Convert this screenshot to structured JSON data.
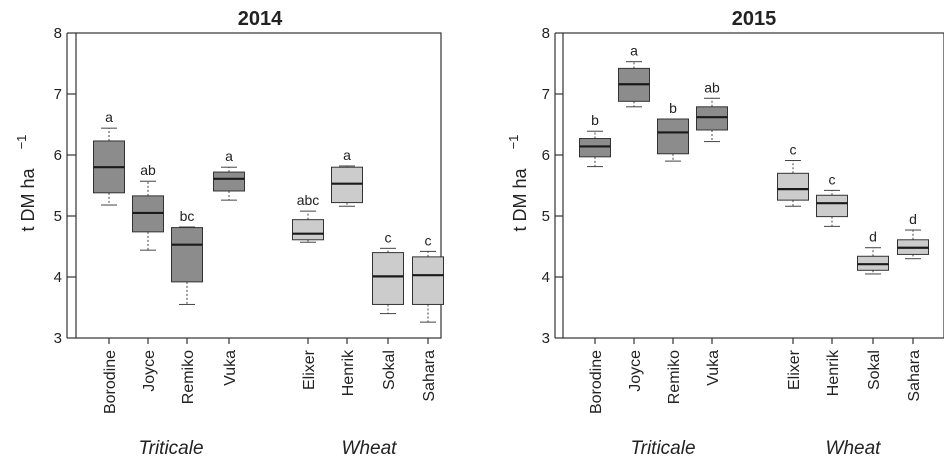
{
  "chart_data": [
    {
      "type": "box",
      "title": "2014",
      "ylabel": "t DM ha",
      "ylabel_superscript": "−1",
      "ylim": [
        3,
        8
      ],
      "yticks": [
        3,
        4,
        5,
        6,
        7,
        8
      ],
      "grid": false,
      "groups": [
        {
          "name": "Triticale",
          "color": "#8c8c8c",
          "items": [
            {
              "label": "Borodine",
              "min": 5.18,
              "q1": 5.38,
              "median": 5.8,
              "q3": 6.23,
              "max": 6.44,
              "letter": "a"
            },
            {
              "label": "Joyce",
              "min": 4.44,
              "q1": 4.74,
              "median": 5.05,
              "q3": 5.33,
              "max": 5.57,
              "letter": "ab"
            },
            {
              "label": "Remiko",
              "min": 3.55,
              "q1": 3.92,
              "median": 4.53,
              "q3": 4.81,
              "max": 4.82,
              "letter": "bc"
            },
            {
              "label": "Vuka",
              "min": 5.26,
              "q1": 5.41,
              "median": 5.61,
              "q3": 5.72,
              "max": 5.8,
              "letter": "a"
            }
          ]
        },
        {
          "name": "Wheat",
          "color": "#cccccc",
          "items": [
            {
              "label": "Elixer",
              "min": 4.57,
              "q1": 4.61,
              "median": 4.71,
              "q3": 4.94,
              "max": 5.08,
              "letter": "abc"
            },
            {
              "label": "Henrik",
              "min": 5.16,
              "q1": 5.22,
              "median": 5.53,
              "q3": 5.8,
              "max": 5.82,
              "letter": "a"
            },
            {
              "label": "Sokal",
              "min": 3.4,
              "q1": 3.55,
              "median": 4.01,
              "q3": 4.4,
              "max": 4.47,
              "letter": "c"
            },
            {
              "label": "Sahara",
              "min": 3.26,
              "q1": 3.55,
              "median": 4.03,
              "q3": 4.33,
              "max": 4.42,
              "letter": "c"
            }
          ]
        }
      ]
    },
    {
      "type": "box",
      "title": "2015",
      "ylabel": "t DM ha",
      "ylabel_superscript": "−1",
      "ylim": [
        3,
        8
      ],
      "yticks": [
        3,
        4,
        5,
        6,
        7,
        8
      ],
      "grid": false,
      "groups": [
        {
          "name": "Triticale",
          "color": "#8c8c8c",
          "items": [
            {
              "label": "Borodine",
              "min": 5.81,
              "q1": 5.97,
              "median": 6.14,
              "q3": 6.27,
              "max": 6.39,
              "letter": "b"
            },
            {
              "label": "Joyce",
              "min": 6.79,
              "q1": 6.88,
              "median": 7.16,
              "q3": 7.42,
              "max": 7.53,
              "letter": "a"
            },
            {
              "label": "Remiko",
              "min": 5.9,
              "q1": 6.02,
              "median": 6.37,
              "q3": 6.59,
              "max": 6.59,
              "letter": "b"
            },
            {
              "label": "Vuka",
              "min": 6.22,
              "q1": 6.41,
              "median": 6.62,
              "q3": 6.79,
              "max": 6.93,
              "letter": "ab"
            }
          ]
        },
        {
          "name": "Wheat",
          "color": "#cccccc",
          "items": [
            {
              "label": "Elixer",
              "min": 5.16,
              "q1": 5.26,
              "median": 5.44,
              "q3": 5.7,
              "max": 5.91,
              "letter": "c"
            },
            {
              "label": "Henrik",
              "min": 4.83,
              "q1": 4.99,
              "median": 5.21,
              "q3": 5.34,
              "max": 5.42,
              "letter": "c"
            },
            {
              "label": "Sokal",
              "min": 4.05,
              "q1": 4.11,
              "median": 4.21,
              "q3": 4.34,
              "max": 4.48,
              "letter": "d"
            },
            {
              "label": "Sahara",
              "min": 4.3,
              "q1": 4.37,
              "median": 4.48,
              "q3": 4.61,
              "max": 4.77,
              "letter": "d"
            }
          ]
        }
      ]
    }
  ]
}
